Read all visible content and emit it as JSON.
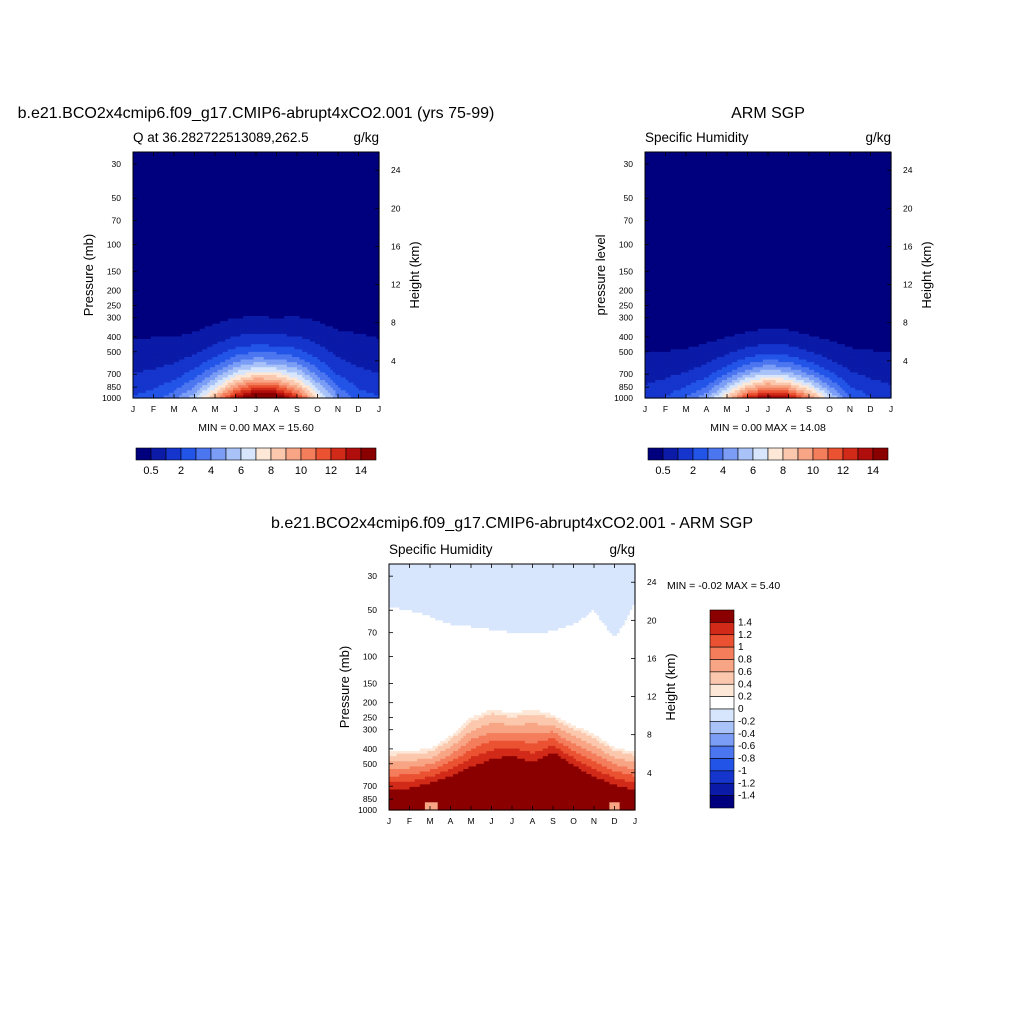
{
  "colors": {
    "blue_red_16": [
      "#00007f",
      "#0b1ba8",
      "#1535cc",
      "#2354e8",
      "#4c76f0",
      "#7b9df5",
      "#a9c3f8",
      "#d7e6fc",
      "#fde7d7",
      "#fbc8ae",
      "#f8a585",
      "#f47d5c",
      "#ea5232",
      "#d22a18",
      "#b00e0c",
      "#8a0000"
    ],
    "diff_16": [
      "#00007f",
      "#0b1ba8",
      "#1535cc",
      "#2354e8",
      "#4c76f0",
      "#7b9df5",
      "#a9c3f8",
      "#d7e6fc",
      "#ffffff",
      "#fde7d7",
      "#fbc8ae",
      "#f8a585",
      "#f47d5c",
      "#ea5232",
      "#d22a18",
      "#8a0000"
    ]
  },
  "chart_data": [
    {
      "id": "model",
      "type": "contour",
      "title": "b.e21.BCO2x4cmip6.f09_g17.CMIP6-abrupt4xCO2.001 (yrs 75-99)",
      "left_label": "Q at 36.282722513089,262.5",
      "right_label": "g/kg",
      "ylabel": "Pressure (mb)",
      "ylabel_right": "Height (km)",
      "months": [
        "J",
        "F",
        "M",
        "A",
        "M",
        "J",
        "J",
        "A",
        "S",
        "O",
        "N",
        "D",
        "J"
      ],
      "pressure_ticks": [
        "30",
        "50",
        "70",
        "100",
        "150",
        "200",
        "250",
        "300",
        "400",
        "500",
        "700",
        "850",
        "1000"
      ],
      "height_ticks": [
        "24",
        "20",
        "16",
        "12",
        "8",
        "4"
      ],
      "stats": "MIN =   0.00 MAX =  15.60",
      "min": 0.0,
      "max": 15.6,
      "levels": [
        0.5,
        1,
        2,
        3,
        4,
        5,
        6,
        7,
        8,
        9,
        10,
        11,
        12,
        13,
        14
      ],
      "colorbar_labels": [
        "0.5",
        "2",
        "4",
        "6",
        "8",
        "10",
        "12",
        "14"
      ],
      "field": {
        "surface_hpa": 980,
        "cap_hpa": [
          410,
          405,
          400,
          370,
          330,
          300,
          295,
          300,
          295,
          315,
          360,
          380,
          410
        ],
        "surface_value": [
          2.0,
          2.5,
          3.5,
          5.5,
          9.0,
          13.0,
          15.6,
          15.0,
          12.0,
          7.5,
          4.0,
          2.5,
          2.0
        ]
      }
    },
    {
      "id": "obs",
      "type": "contour",
      "title": "ARM SGP",
      "left_label": "Specific Humidity",
      "right_label": "g/kg",
      "ylabel": "pressure level",
      "ylabel_right": "Height (km)",
      "months": [
        "J",
        "F",
        "M",
        "A",
        "M",
        "J",
        "J",
        "A",
        "S",
        "O",
        "N",
        "D",
        "J"
      ],
      "pressure_ticks": [
        "30",
        "50",
        "70",
        "100",
        "150",
        "200",
        "250",
        "300",
        "400",
        "500",
        "700",
        "850",
        "1000"
      ],
      "height_ticks": [
        "24",
        "20",
        "16",
        "12",
        "8",
        "4"
      ],
      "stats": "MIN =   0.00 MAX =  14.08",
      "min": 0.0,
      "max": 14.08,
      "levels": [
        0.5,
        1,
        2,
        3,
        4,
        5,
        6,
        7,
        8,
        9,
        10,
        11,
        12,
        13,
        14
      ],
      "colorbar_labels": [
        "0.5",
        "2",
        "4",
        "6",
        "8",
        "10",
        "12",
        "14"
      ],
      "field": {
        "surface_hpa": 980,
        "cap_hpa": [
          500,
          495,
          480,
          440,
          400,
          370,
          350,
          360,
          390,
          420,
          470,
          490,
          500
        ],
        "surface_value": [
          1.5,
          2.0,
          3.0,
          4.5,
          8.0,
          12.0,
          14.08,
          13.0,
          10.0,
          6.0,
          3.0,
          2.0,
          1.5
        ]
      }
    },
    {
      "id": "diff",
      "type": "contour",
      "title": "b.e21.BCO2x4cmip6.f09_g17.CMIP6-abrupt4xCO2.001 - ARM SGP",
      "left_label": "Specific Humidity",
      "right_label": "g/kg",
      "ylabel": "Pressure (mb)",
      "ylabel_right": "Height (km)",
      "months": [
        "J",
        "F",
        "M",
        "A",
        "M",
        "J",
        "J",
        "A",
        "S",
        "O",
        "N",
        "D",
        "J"
      ],
      "pressure_ticks": [
        "30",
        "50",
        "70",
        "100",
        "150",
        "200",
        "250",
        "300",
        "400",
        "500",
        "700",
        "850",
        "1000"
      ],
      "height_ticks": [
        "24",
        "20",
        "16",
        "12",
        "8",
        "4"
      ],
      "stats": "MIN =  -0.02 MAX =   5.40",
      "min": -0.02,
      "max": 5.4,
      "levels": [
        -1.4,
        -1.2,
        -1,
        -0.8,
        -0.6,
        -0.4,
        -0.2,
        0,
        0.2,
        0.4,
        0.6,
        0.8,
        1,
        1.2,
        1.4
      ],
      "colorbar_labels": [
        "1.4",
        "1.2",
        "1",
        "0.8",
        "0.6",
        "0.4",
        "0.2",
        "0",
        "-0.2",
        "-0.4",
        "-0.6",
        "-0.8",
        "-1",
        "-1.2",
        "-1.4"
      ],
      "field": {
        "blue_boundary_hpa": [
          48,
          50,
          55,
          62,
          64,
          67,
          70,
          72,
          68,
          62,
          50,
          75,
          45
        ],
        "plume_top_hpa": [
          420,
          410,
          400,
          330,
          250,
          220,
          235,
          220,
          240,
          280,
          320,
          390,
          420
        ],
        "core_top_hpa": [
          780,
          760,
          700,
          640,
          560,
          500,
          470,
          530,
          440,
          540,
          640,
          720,
          780
        ]
      }
    }
  ]
}
